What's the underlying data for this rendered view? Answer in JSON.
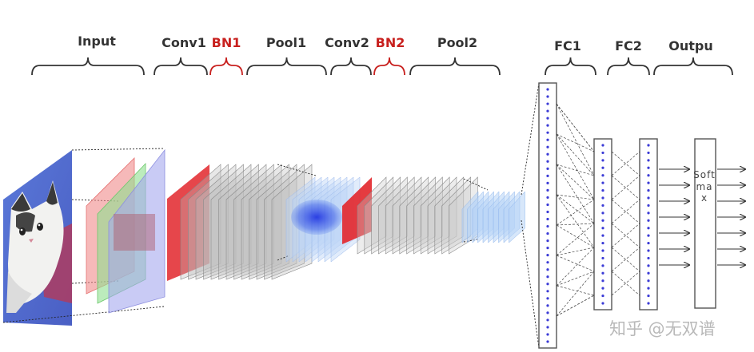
{
  "stages": [
    {
      "key": "input",
      "label": "Input",
      "color": "#333333"
    },
    {
      "key": "conv1",
      "label": "Conv1",
      "color": "#333333"
    },
    {
      "key": "bn1",
      "label": "BN1",
      "color": "#c8201e"
    },
    {
      "key": "pool1",
      "label": "Pool1",
      "color": "#333333"
    },
    {
      "key": "conv2",
      "label": "Conv2",
      "color": "#333333"
    },
    {
      "key": "bn2",
      "label": "BN2",
      "color": "#c8201e"
    },
    {
      "key": "pool2",
      "label": "Pool2",
      "color": "#333333"
    },
    {
      "key": "fc1",
      "label": "FC1",
      "color": "#333333"
    },
    {
      "key": "fc2",
      "label": "FC2",
      "color": "#333333"
    },
    {
      "key": "output",
      "label": "Outpu",
      "color": "#333333"
    }
  ],
  "softmax_label": "Softmax",
  "watermark": "知乎 @无双谱",
  "colors": {
    "bn": "#c8201e",
    "bn_fill": "#e2262b",
    "gray_map": "#9a9a9a",
    "blue_node": "#3b3bd6",
    "fc_border": "#555555"
  },
  "icons": {
    "input_image": "cat-photo",
    "output_arrows": "arrow-right-icon"
  }
}
